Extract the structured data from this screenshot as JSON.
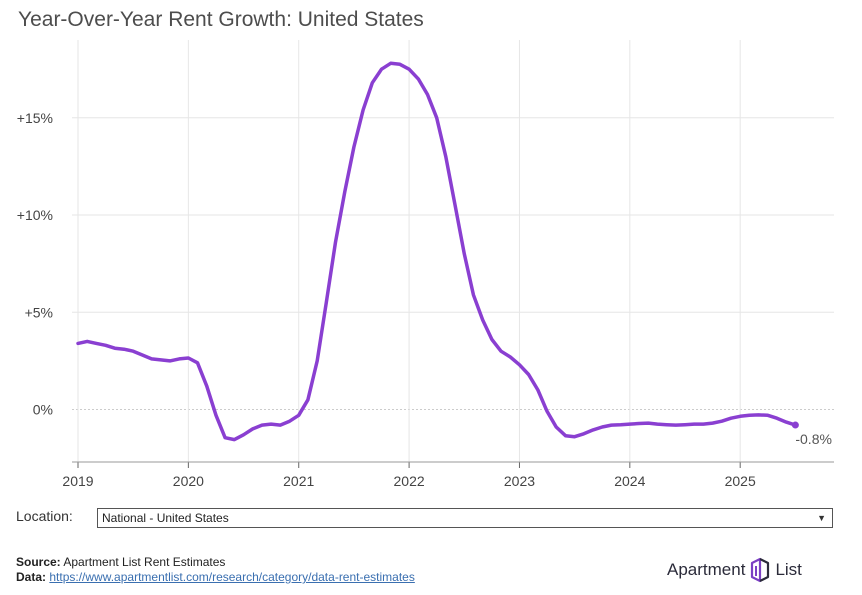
{
  "title": "Year-Over-Year Rent Growth: United States",
  "location": {
    "label": "Location:",
    "selected": "National - United States"
  },
  "footer": {
    "source_label": "Source:",
    "source_text": "Apartment List Rent Estimates",
    "data_label": "Data:",
    "data_link": "https://www.apartmentlist.com/research/category/data-rent-estimates"
  },
  "logo": {
    "word1": "Apartment",
    "word2": "List"
  },
  "colors": {
    "line": "#8a3fd1",
    "grid": "#e6e6e6",
    "zero": "#cccccc"
  },
  "chart_data": {
    "type": "line",
    "title": "Year-Over-Year Rent Growth: United States",
    "xlabel": "",
    "ylabel": "",
    "xlim": [
      2019.0,
      2025.85
    ],
    "ylim": [
      -2.7,
      19.0
    ],
    "x_ticks": [
      2019,
      2020,
      2021,
      2022,
      2023,
      2024,
      2025
    ],
    "x_tick_labels": [
      "2019",
      "2020",
      "2021",
      "2022",
      "2023",
      "2024",
      "2025"
    ],
    "y_ticks": [
      0,
      5,
      10,
      15
    ],
    "y_tick_labels": [
      "0%",
      "+5%",
      "+10%",
      "+15%"
    ],
    "end_label": "-0.8%",
    "series": [
      {
        "name": "National - United States",
        "x": [
          2019.0,
          2019.083,
          2019.167,
          2019.25,
          2019.333,
          2019.417,
          2019.5,
          2019.583,
          2019.667,
          2019.75,
          2019.833,
          2019.917,
          2020.0,
          2020.083,
          2020.167,
          2020.25,
          2020.333,
          2020.417,
          2020.5,
          2020.583,
          2020.667,
          2020.75,
          2020.833,
          2020.917,
          2021.0,
          2021.083,
          2021.167,
          2021.25,
          2021.333,
          2021.417,
          2021.5,
          2021.583,
          2021.667,
          2021.75,
          2021.833,
          2021.917,
          2022.0,
          2022.083,
          2022.167,
          2022.25,
          2022.333,
          2022.417,
          2022.5,
          2022.583,
          2022.667,
          2022.75,
          2022.833,
          2022.917,
          2023.0,
          2023.083,
          2023.167,
          2023.25,
          2023.333,
          2023.417,
          2023.5,
          2023.583,
          2023.667,
          2023.75,
          2023.833,
          2023.917,
          2024.0,
          2024.083,
          2024.167,
          2024.25,
          2024.333,
          2024.417,
          2024.5,
          2024.583,
          2024.667,
          2024.75,
          2024.833,
          2024.917,
          2025.0,
          2025.083,
          2025.167,
          2025.25,
          2025.333,
          2025.417,
          2025.5
        ],
        "values": [
          3.4,
          3.5,
          3.4,
          3.3,
          3.15,
          3.1,
          3.0,
          2.8,
          2.6,
          2.55,
          2.5,
          2.6,
          2.65,
          2.4,
          1.2,
          -0.3,
          -1.45,
          -1.55,
          -1.3,
          -1.0,
          -0.8,
          -0.75,
          -0.8,
          -0.6,
          -0.3,
          0.5,
          2.5,
          5.5,
          8.6,
          11.2,
          13.5,
          15.4,
          16.8,
          17.5,
          17.8,
          17.75,
          17.5,
          17.0,
          16.2,
          15.0,
          13.0,
          10.5,
          8.0,
          5.9,
          4.6,
          3.6,
          3.0,
          2.7,
          2.3,
          1.8,
          1.0,
          -0.1,
          -0.9,
          -1.35,
          -1.4,
          -1.25,
          -1.05,
          -0.9,
          -0.8,
          -0.78,
          -0.75,
          -0.72,
          -0.7,
          -0.75,
          -0.78,
          -0.8,
          -0.78,
          -0.75,
          -0.75,
          -0.7,
          -0.6,
          -0.45,
          -0.35,
          -0.3,
          -0.28,
          -0.3,
          -0.45,
          -0.65,
          -0.8
        ]
      }
    ]
  }
}
